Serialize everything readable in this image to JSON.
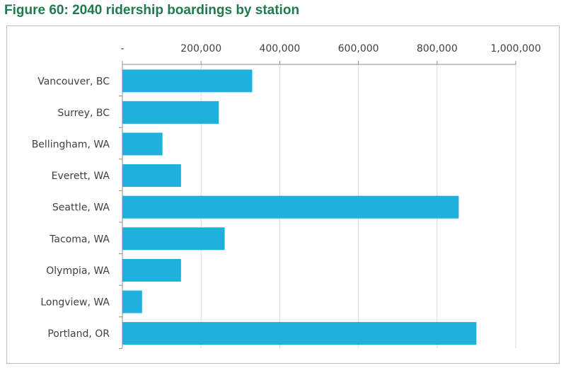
{
  "chart_data": {
    "type": "bar",
    "orientation": "horizontal",
    "title": "Figure 60: 2040 ridership boardings by station",
    "xlabel": "",
    "ylabel": "",
    "xlim": [
      0,
      1000000
    ],
    "x_ticks": [
      0,
      200000,
      400000,
      600000,
      800000,
      1000000
    ],
    "x_tick_labels": [
      "-",
      "200,000",
      "400,000",
      "600,000",
      "800,000",
      "1,000,000"
    ],
    "x_axis_position": "top",
    "grid": true,
    "categories": [
      "Vancouver, BC",
      "Surrey, BC",
      "Bellingham, WA",
      "Everett, WA",
      "Seattle, WA",
      "Tacoma, WA",
      "Olympia, WA",
      "Longview, WA",
      "Portland, OR"
    ],
    "values": [
      330000,
      245000,
      102000,
      149000,
      855000,
      260000,
      149000,
      50000,
      900000
    ],
    "bar_color": "#1eb1de"
  }
}
